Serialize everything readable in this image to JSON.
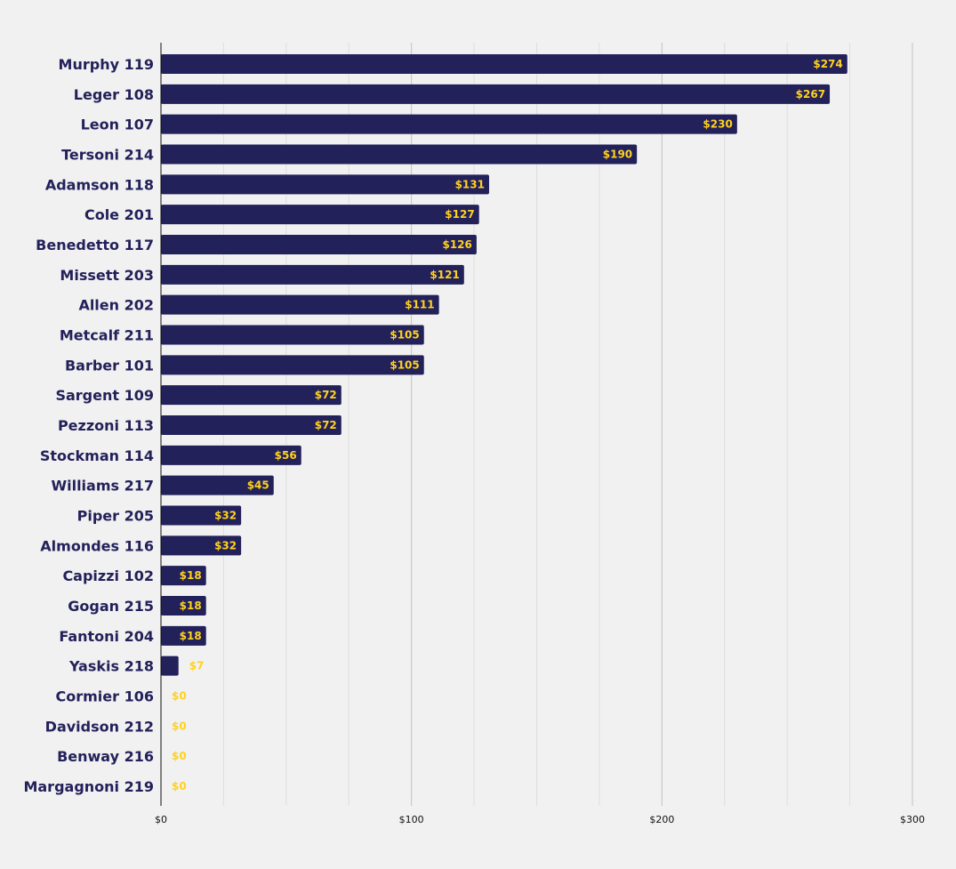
{
  "chart_data": {
    "type": "bar",
    "orientation": "horizontal",
    "categories": [
      "Murphy 119",
      "Leger 108",
      "Leon 107",
      "Tersoni 214",
      "Adamson 118",
      "Cole 201",
      "Benedetto 117",
      "Missett 203",
      "Allen 202",
      "Metcalf 211",
      "Barber 101",
      "Sargent 109",
      "Pezzoni 113",
      "Stockman 114",
      "Williams 217",
      "Piper 205",
      "Almondes 116",
      "Capizzi 102",
      "Gogan 215",
      "Fantoni 204",
      "Yaskis 218",
      "Cormier 106",
      "Davidson 212",
      "Benway 216",
      "Margagnoni 219"
    ],
    "values": [
      274,
      267,
      230,
      190,
      131,
      127,
      126,
      121,
      111,
      105,
      105,
      72,
      72,
      56,
      45,
      32,
      32,
      18,
      18,
      18,
      7,
      0,
      0,
      0,
      0
    ],
    "data_labels": [
      "$274",
      "$267",
      "$230",
      "$190",
      "$131",
      "$127",
      "$126",
      "$121",
      "$111",
      "$105",
      "$105",
      "$72",
      "$72",
      "$56",
      "$45",
      "$32",
      "$32",
      "$18",
      "$18",
      "$18",
      "$7",
      "$0",
      "$0",
      "$0",
      "$0"
    ],
    "title": "",
    "xlabel": "",
    "ylabel": "",
    "xlim": [
      0,
      300
    ],
    "x_ticks": [
      0,
      100,
      200,
      300
    ],
    "x_tick_labels": [
      "$0",
      "$100",
      "$200",
      "$300"
    ],
    "minor_grid_step": 25,
    "grid": true,
    "colors": {
      "bar": "#23215a",
      "data_label": "#ffd21f",
      "background": "#f1f1f1",
      "category_label": "#23215a"
    }
  }
}
